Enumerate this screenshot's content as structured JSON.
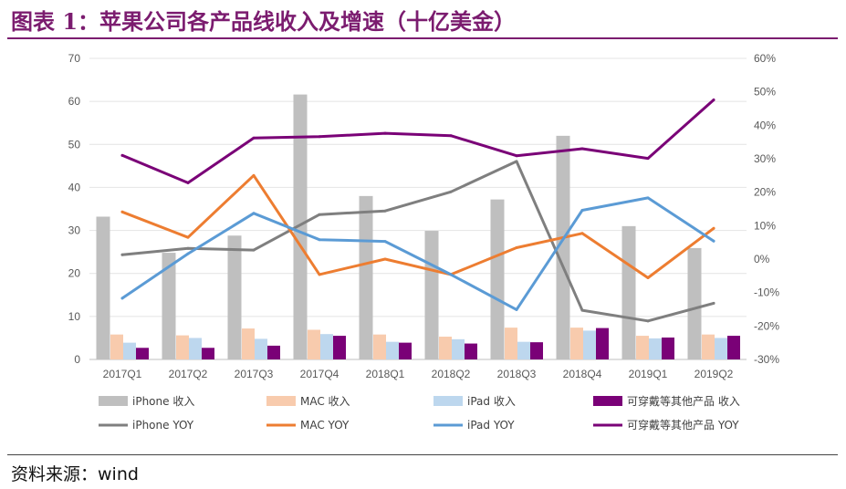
{
  "header": {
    "title": "图表 1：苹果公司各产品线收入及增速（十亿美金）"
  },
  "footer": {
    "source": "资料来源：wind"
  },
  "chart_data": {
    "type": "bar",
    "title": "图表 1：苹果公司各产品线收入及增速（十亿美金）",
    "categories": [
      "2017Q1",
      "2017Q2",
      "2017Q3",
      "2017Q4",
      "2018Q1",
      "2018Q2",
      "2018Q3",
      "2018Q4",
      "2019Q1",
      "2019Q2"
    ],
    "left_axis": {
      "ylim": [
        0,
        70
      ],
      "ticks": [
        "0",
        "10",
        "20",
        "30",
        "40",
        "50",
        "60",
        "70"
      ]
    },
    "right_axis": {
      "ylim": [
        -30,
        60
      ],
      "ticks": [
        "-30%",
        "-20%",
        "-10%",
        "0%",
        "10%",
        "20%",
        "30%",
        "40%",
        "50%",
        "60%"
      ]
    },
    "grid": true,
    "legend_position": "bottom",
    "series": [
      {
        "name": "iPhone 收入",
        "kind": "bar",
        "axis": "left",
        "color": "#bfbfbf",
        "values": [
          33.2,
          24.8,
          28.8,
          61.6,
          38.0,
          29.9,
          37.2,
          52.0,
          31.0,
          25.9
        ]
      },
      {
        "name": "MAC 收入",
        "kind": "bar",
        "axis": "left",
        "color": "#f8cbad",
        "values": [
          5.8,
          5.6,
          7.2,
          6.9,
          5.8,
          5.3,
          7.4,
          7.4,
          5.5,
          5.8
        ]
      },
      {
        "name": "iPad 收入",
        "kind": "bar",
        "axis": "left",
        "color": "#bdd7ee",
        "values": [
          3.9,
          5.0,
          4.8,
          5.9,
          4.1,
          4.7,
          4.1,
          6.7,
          4.9,
          5.0
        ]
      },
      {
        "name": "可穿戴等其他产品 收入",
        "kind": "bar",
        "axis": "left",
        "color": "#7a0177",
        "values": [
          2.7,
          2.7,
          3.2,
          5.5,
          3.9,
          3.7,
          4.0,
          7.3,
          5.1,
          5.5
        ]
      },
      {
        "name": "iPhone YOY",
        "kind": "line",
        "axis": "right",
        "color": "#7f7f7f",
        "values": [
          1.3,
          3.2,
          2.7,
          13.3,
          14.4,
          20.1,
          29.2,
          -15.3,
          -18.5,
          -13.2
        ]
      },
      {
        "name": "MAC YOY",
        "kind": "line",
        "axis": "right",
        "color": "#ed7d31",
        "values": [
          14.1,
          6.5,
          25.0,
          -4.6,
          0.0,
          -4.6,
          3.4,
          7.7,
          -5.6,
          9.2
        ]
      },
      {
        "name": "iPad YOY",
        "kind": "line",
        "axis": "right",
        "color": "#5b9bd5",
        "values": [
          -11.7,
          1.6,
          13.7,
          5.8,
          5.3,
          -4.6,
          -15.1,
          14.6,
          18.3,
          5.4
        ]
      },
      {
        "name": "可穿戴等其他产品 YOY",
        "kind": "line",
        "axis": "right",
        "color": "#7a0177",
        "values": [
          31.0,
          22.8,
          36.2,
          36.6,
          37.6,
          36.9,
          30.9,
          33.0,
          30.1,
          47.6
        ]
      }
    ]
  }
}
